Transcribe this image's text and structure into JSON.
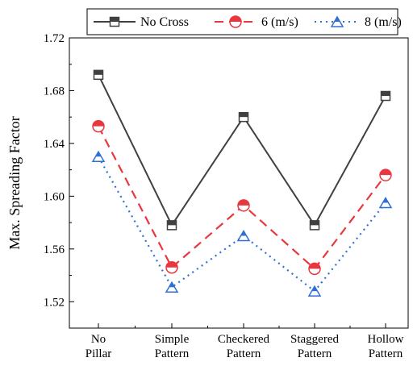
{
  "chart_data": {
    "type": "line",
    "categories": [
      [
        "No",
        "Pillar"
      ],
      [
        "Simple",
        "Pattern"
      ],
      [
        "Checkered",
        "Pattern"
      ],
      [
        "Staggered",
        "Pattern"
      ],
      [
        "Hollow",
        "Pattern"
      ]
    ],
    "ylabel": "Max. Spreading Factor",
    "ylim": [
      1.5,
      1.72
    ],
    "yticks": [
      1.52,
      1.56,
      1.6,
      1.64,
      1.68,
      1.72
    ],
    "ytick_labels": [
      "1.52",
      "1.56",
      "1.60",
      "1.64",
      "1.68",
      "1.72"
    ],
    "legend_position": "top",
    "grid": false,
    "series": [
      {
        "name": "No Cross",
        "values": [
          1.692,
          1.578,
          1.66,
          1.578,
          1.676
        ],
        "color": "#404040",
        "line": "solid",
        "marker": "square"
      },
      {
        "name": "6 (m/s)",
        "values": [
          1.653,
          1.546,
          1.593,
          1.545,
          1.616
        ],
        "color": "#e8373f",
        "line": "dashed",
        "marker": "half-circle"
      },
      {
        "name": "8 (m/s)",
        "values": [
          1.63,
          1.531,
          1.57,
          1.528,
          1.595
        ],
        "color": "#2f6fd6",
        "line": "dotted",
        "marker": "half-triangle"
      }
    ]
  }
}
